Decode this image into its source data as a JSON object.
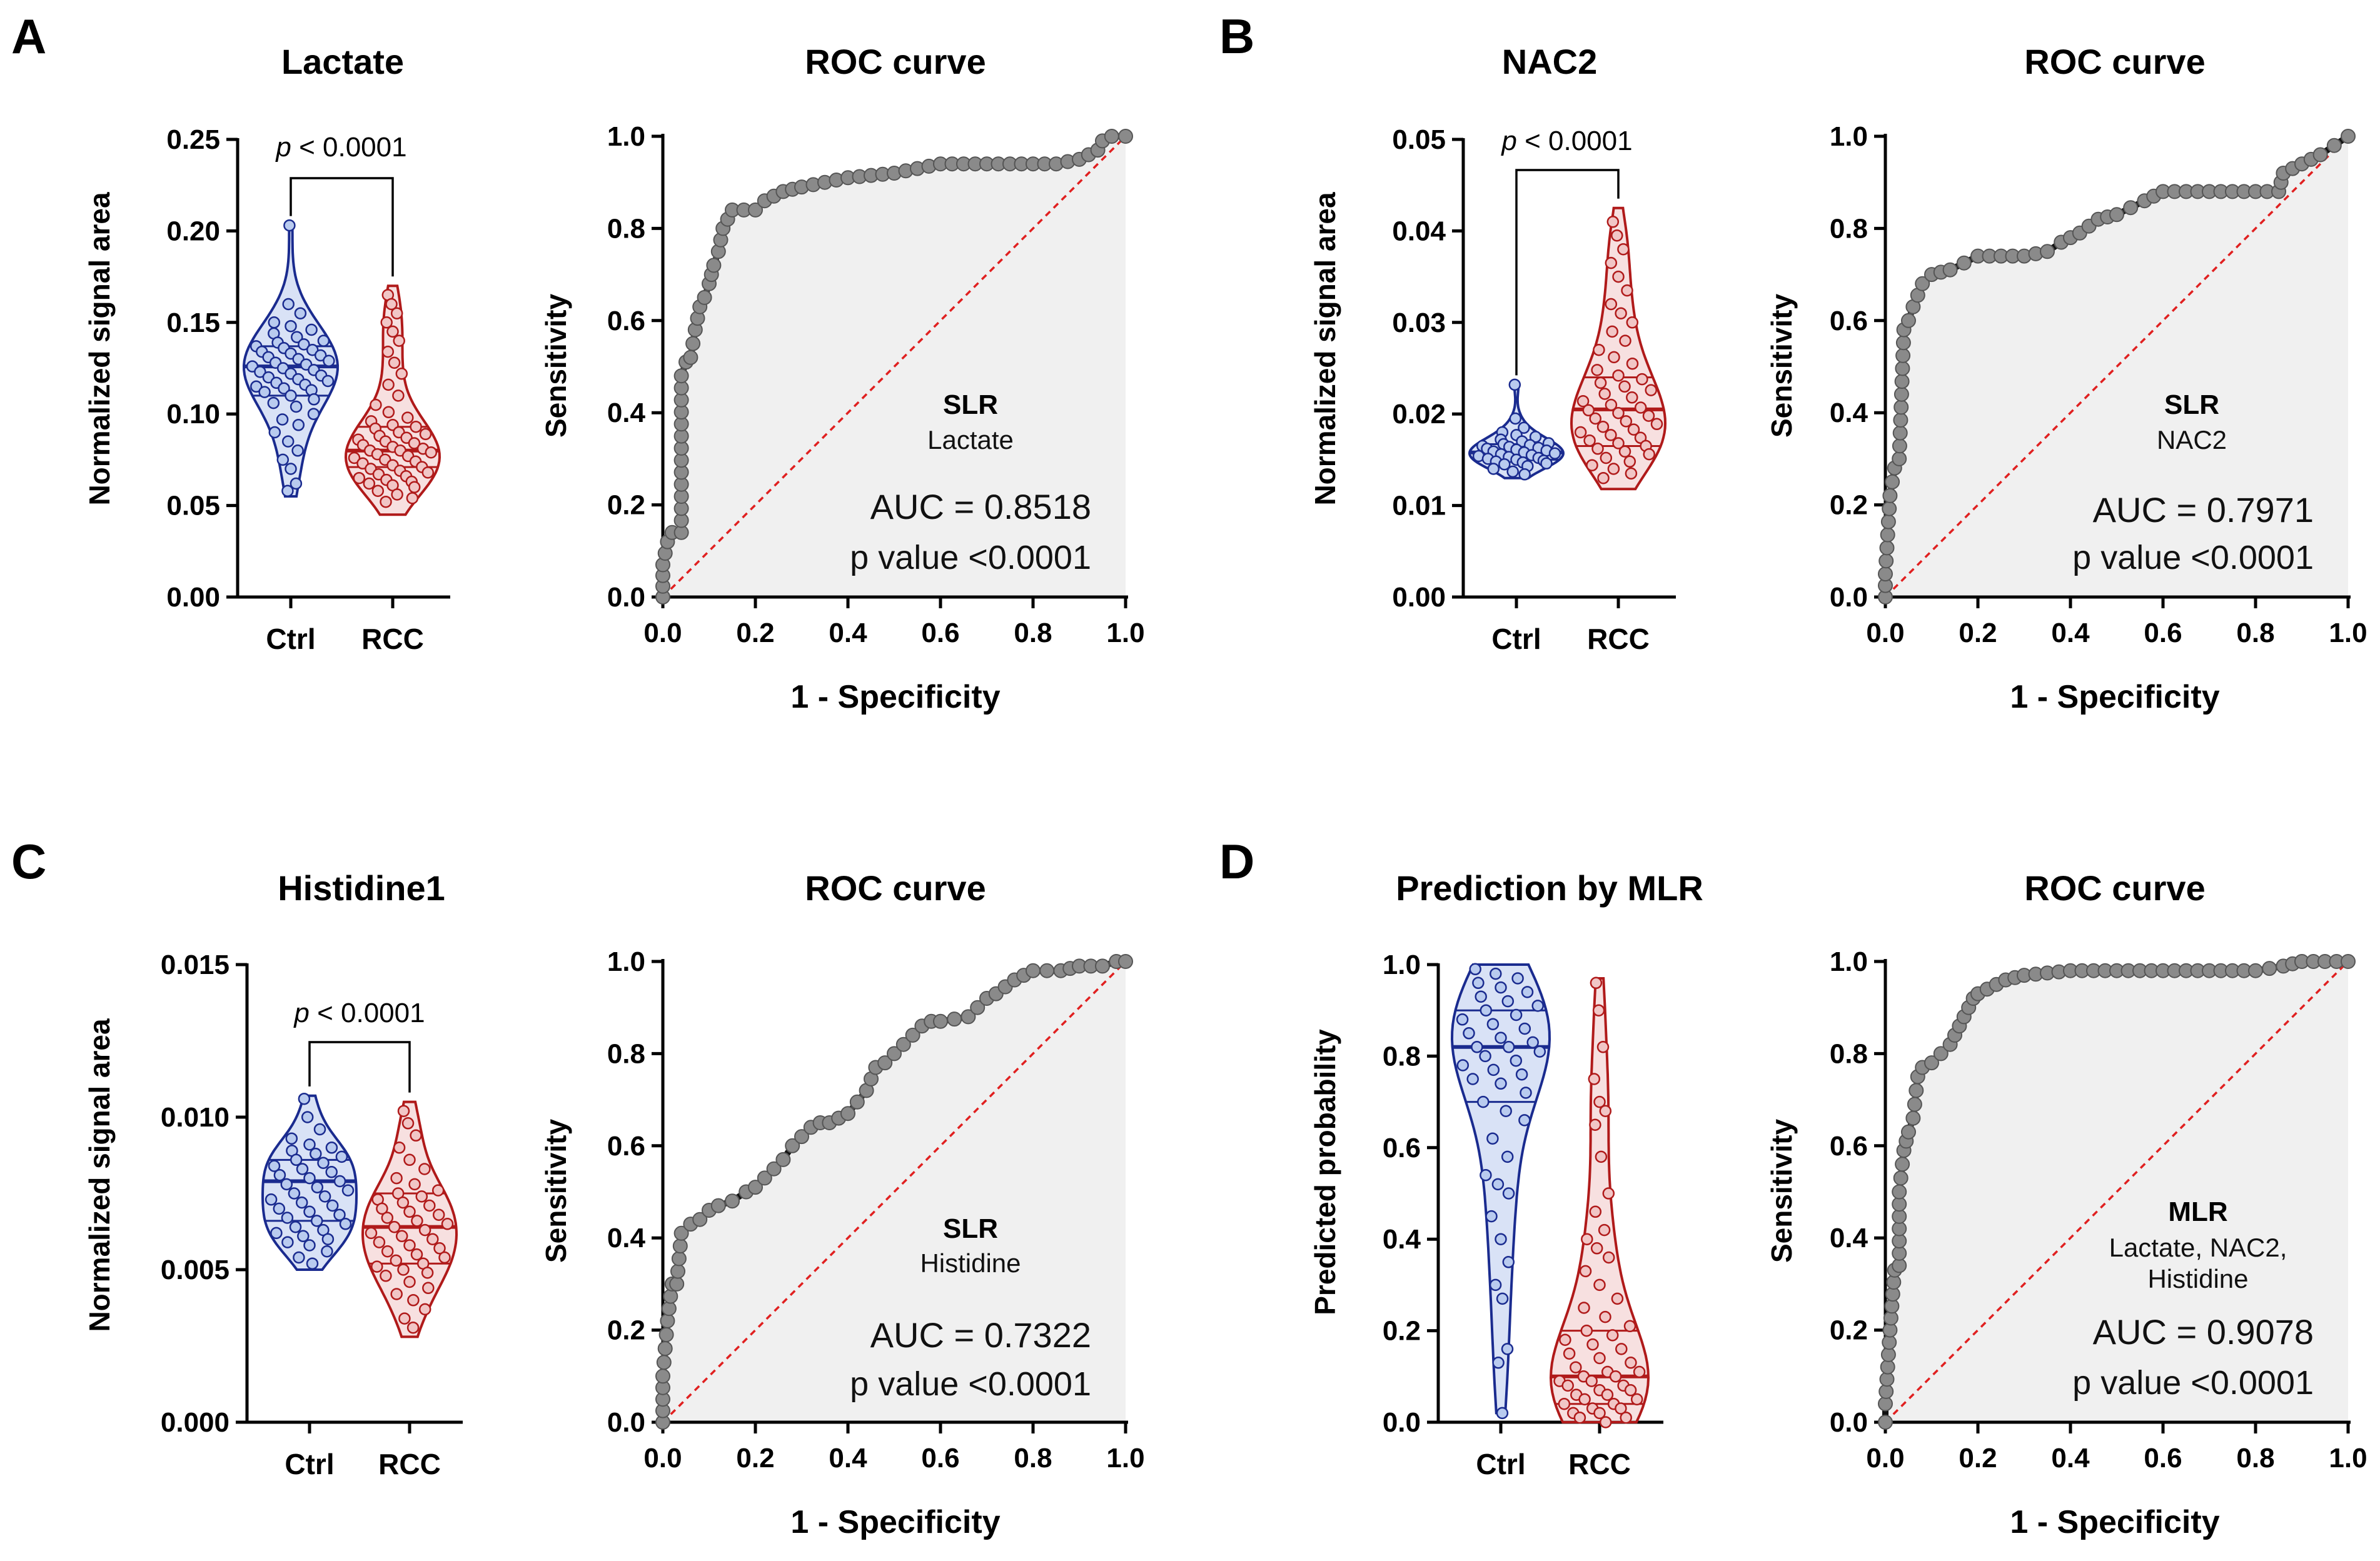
{
  "colors": {
    "ctrl": "#1a2b8f",
    "ctrl_fill": "#b9cbef",
    "rcc": "#b01a1a",
    "rcc_fill": "#f1c6c6",
    "roc_line": "#111111",
    "roc_marker": "#8a8a8a",
    "roc_area": "#f0f0f0",
    "diagonal": "#e02020"
  },
  "panels": [
    {
      "letter": "A",
      "violin_title": "Lactate",
      "roc_title": "ROC curve",
      "ylabel": "Normalized signal area",
      "roc_ylabel": "Sensitivity",
      "roc_xlabel": "1 - Specificity",
      "p_prefix": "p",
      "p_text": " < 0.0001",
      "model": "SLR",
      "model_vars": [
        "Lactate"
      ],
      "auc": "AUC = 0.8518",
      "pvalue": "p value <0.0001"
    },
    {
      "letter": "B",
      "violin_title": "NAC2",
      "roc_title": "ROC curve",
      "ylabel": "Normalized signal area",
      "roc_ylabel": "Sensitivity",
      "roc_xlabel": "1 - Specificity",
      "p_prefix": "p",
      "p_text": " < 0.0001",
      "model": "SLR",
      "model_vars": [
        "NAC2"
      ],
      "auc": "AUC = 0.7971",
      "pvalue": "p value <0.0001"
    },
    {
      "letter": "C",
      "violin_title": "Histidine1",
      "roc_title": "ROC curve",
      "ylabel": "Normalized signal area",
      "roc_ylabel": "Sensitivity",
      "roc_xlabel": "1 - Specificity",
      "p_prefix": "p",
      "p_text": " < 0.0001",
      "model": "SLR",
      "model_vars": [
        "Histidine"
      ],
      "auc": "AUC = 0.7322",
      "pvalue": "p value <0.0001"
    },
    {
      "letter": "D",
      "violin_title": "Prediction by MLR",
      "roc_title": "ROC curve",
      "ylabel": "Predicted probability",
      "roc_ylabel": "Sensitivity",
      "roc_xlabel": "1 - Specificity",
      "p_prefix": "",
      "p_text": "",
      "model": "MLR",
      "model_vars": [
        "Lactate, NAC2,",
        "Histidine"
      ],
      "auc": "AUC = 0.9078",
      "pvalue": "p value <0.0001"
    }
  ],
  "chart_data": [
    {
      "type": "violin",
      "title": "Lactate",
      "ylabel": "Normalized signal area",
      "categories": [
        "Ctrl",
        "RCC"
      ],
      "ylim": [
        0,
        0.25
      ],
      "yticks": [
        "0.00",
        "0.05",
        "0.10",
        "0.15",
        "0.20",
        "0.25"
      ],
      "annotation": "p < 0.0001",
      "series": [
        {
          "name": "Ctrl",
          "min": 0.055,
          "max": 0.203,
          "q1": 0.11,
          "median": 0.126,
          "q3": 0.137,
          "points": [
            0.203,
            0.16,
            0.155,
            0.15,
            0.148,
            0.146,
            0.144,
            0.142,
            0.14,
            0.139,
            0.138,
            0.137,
            0.136,
            0.135,
            0.134,
            0.133,
            0.132,
            0.131,
            0.13,
            0.129,
            0.128,
            0.127,
            0.126,
            0.125,
            0.124,
            0.123,
            0.122,
            0.121,
            0.12,
            0.119,
            0.118,
            0.117,
            0.116,
            0.115,
            0.114,
            0.113,
            0.112,
            0.11,
            0.108,
            0.106,
            0.104,
            0.1,
            0.097,
            0.094,
            0.09,
            0.085,
            0.08,
            0.075,
            0.07,
            0.062,
            0.058
          ]
        },
        {
          "name": "RCC",
          "min": 0.045,
          "max": 0.17,
          "q1": 0.071,
          "median": 0.08,
          "q3": 0.093,
          "points": [
            0.165,
            0.16,
            0.155,
            0.15,
            0.145,
            0.14,
            0.134,
            0.128,
            0.122,
            0.116,
            0.11,
            0.105,
            0.101,
            0.098,
            0.096,
            0.094,
            0.093,
            0.092,
            0.09,
            0.089,
            0.088,
            0.087,
            0.086,
            0.085,
            0.084,
            0.083,
            0.082,
            0.081,
            0.08,
            0.08,
            0.079,
            0.078,
            0.077,
            0.076,
            0.075,
            0.074,
            0.073,
            0.072,
            0.071,
            0.07,
            0.069,
            0.068,
            0.067,
            0.066,
            0.065,
            0.064,
            0.063,
            0.062,
            0.061,
            0.06,
            0.058,
            0.056,
            0.054,
            0.052
          ]
        }
      ]
    },
    {
      "type": "line",
      "title": "ROC curve",
      "xlabel": "1 - Specificity",
      "ylabel": "Sensitivity",
      "xlim": [
        0,
        1
      ],
      "ylim": [
        0,
        1
      ],
      "ticks": [
        "0.0",
        "0.2",
        "0.4",
        "0.6",
        "0.8",
        "1.0"
      ],
      "x": [
        0,
        0,
        0.01,
        0.02,
        0.04,
        0.04,
        0.05,
        0.06,
        0.07,
        0.08,
        0.09,
        0.1,
        0.11,
        0.12,
        0.13,
        0.15,
        0.2,
        0.22,
        0.26,
        0.3,
        0.35,
        0.4,
        0.5,
        0.6,
        0.7,
        0.85,
        0.9,
        0.94,
        0.95,
        0.97,
        1.0
      ],
      "y": [
        0,
        0.07,
        0.12,
        0.14,
        0.14,
        0.48,
        0.51,
        0.52,
        0.58,
        0.63,
        0.65,
        0.68,
        0.72,
        0.75,
        0.8,
        0.84,
        0.84,
        0.86,
        0.88,
        0.89,
        0.9,
        0.91,
        0.92,
        0.94,
        0.94,
        0.94,
        0.95,
        0.97,
        0.99,
        1.0,
        1.0
      ],
      "text": [
        "SLR",
        "Lactate",
        "AUC = 0.8518",
        "p value <0.0001"
      ]
    },
    {
      "type": "violin",
      "title": "NAC2",
      "ylabel": "Normalized signal area",
      "categories": [
        "Ctrl",
        "RCC"
      ],
      "ylim": [
        0,
        0.05
      ],
      "yticks": [
        "0.00",
        "0.01",
        "0.02",
        "0.03",
        "0.04",
        "0.05"
      ],
      "annotation": "p < 0.0001",
      "series": [
        {
          "name": "Ctrl",
          "min": 0.013,
          "max": 0.0232,
          "q1": 0.015,
          "median": 0.0158,
          "q3": 0.0167,
          "points": [
            0.0232,
            0.0195,
            0.0185,
            0.018,
            0.0177,
            0.0175,
            0.0172,
            0.017,
            0.0168,
            0.0167,
            0.0166,
            0.0165,
            0.0164,
            0.0163,
            0.0162,
            0.0161,
            0.016,
            0.0159,
            0.0158,
            0.0157,
            0.0156,
            0.0155,
            0.0154,
            0.0153,
            0.0152,
            0.0151,
            0.015,
            0.0149,
            0.0148,
            0.0147,
            0.0146,
            0.0145,
            0.0143,
            0.014,
            0.0137,
            0.0134
          ]
        },
        {
          "name": "RCC",
          "min": 0.0118,
          "max": 0.0425,
          "q1": 0.0165,
          "median": 0.0205,
          "q3": 0.024,
          "points": [
            0.041,
            0.0395,
            0.038,
            0.0365,
            0.035,
            0.0335,
            0.032,
            0.031,
            0.03,
            0.029,
            0.028,
            0.027,
            0.0262,
            0.0255,
            0.0248,
            0.0242,
            0.0238,
            0.0234,
            0.023,
            0.0226,
            0.0222,
            0.0218,
            0.0214,
            0.021,
            0.0207,
            0.0204,
            0.0201,
            0.0198,
            0.0195,
            0.0192,
            0.0189,
            0.0186,
            0.0183,
            0.018,
            0.0177,
            0.0174,
            0.0171,
            0.0168,
            0.0165,
            0.0162,
            0.0159,
            0.0156,
            0.0152,
            0.0148,
            0.0144,
            0.014,
            0.0135,
            0.013
          ]
        }
      ]
    },
    {
      "type": "line",
      "title": "ROC curve",
      "xlabel": "1 - Specificity",
      "ylabel": "Sensitivity",
      "xlim": [
        0,
        1
      ],
      "ylim": [
        0,
        1
      ],
      "ticks": [
        "0.0",
        "0.2",
        "0.4",
        "0.6",
        "0.8",
        "1.0"
      ],
      "x": [
        0,
        0,
        0.01,
        0.02,
        0.03,
        0.04,
        0.05,
        0.06,
        0.08,
        0.1,
        0.14,
        0.2,
        0.3,
        0.35,
        0.38,
        0.42,
        0.46,
        0.5,
        0.56,
        0.6,
        0.7,
        0.8,
        0.85,
        0.86,
        0.9,
        0.94,
        0.97,
        1.0
      ],
      "y": [
        0,
        0.05,
        0.22,
        0.28,
        0.3,
        0.58,
        0.6,
        0.63,
        0.68,
        0.7,
        0.71,
        0.74,
        0.74,
        0.75,
        0.77,
        0.79,
        0.82,
        0.83,
        0.86,
        0.88,
        0.88,
        0.88,
        0.88,
        0.92,
        0.94,
        0.96,
        0.98,
        1.0
      ],
      "text": [
        "SLR",
        "NAC2",
        "AUC = 0.7971",
        "p value <0.0001"
      ]
    },
    {
      "type": "violin",
      "title": "Histidine1",
      "ylabel": "Normalized signal area",
      "categories": [
        "Ctrl",
        "RCC"
      ],
      "ylim": [
        0,
        0.015
      ],
      "yticks": [
        "0.000",
        "0.005",
        "0.010",
        "0.015"
      ],
      "annotation": "p < 0.0001",
      "series": [
        {
          "name": "Ctrl",
          "min": 0.005,
          "max": 0.0107,
          "q1": 0.0066,
          "median": 0.0079,
          "q3": 0.0086,
          "points": [
            0.0106,
            0.01,
            0.0096,
            0.0093,
            0.0091,
            0.009,
            0.0089,
            0.0088,
            0.0087,
            0.0086,
            0.0085,
            0.0084,
            0.0083,
            0.0082,
            0.0081,
            0.008,
            0.0079,
            0.0078,
            0.0077,
            0.0076,
            0.0075,
            0.0074,
            0.0073,
            0.0072,
            0.0071,
            0.007,
            0.0069,
            0.0068,
            0.0067,
            0.0066,
            0.0065,
            0.0064,
            0.0063,
            0.0062,
            0.0061,
            0.006,
            0.0059,
            0.0058,
            0.0056,
            0.0054,
            0.0052
          ]
        },
        {
          "name": "RCC",
          "min": 0.0028,
          "max": 0.0105,
          "q1": 0.0052,
          "median": 0.0064,
          "q3": 0.0075,
          "points": [
            0.0102,
            0.0098,
            0.0094,
            0.009,
            0.0086,
            0.0083,
            0.008,
            0.0078,
            0.0076,
            0.0075,
            0.0074,
            0.0073,
            0.0072,
            0.0071,
            0.007,
            0.0069,
            0.0068,
            0.0067,
            0.0066,
            0.0065,
            0.0064,
            0.0063,
            0.0062,
            0.0061,
            0.006,
            0.0059,
            0.0058,
            0.0057,
            0.0056,
            0.0055,
            0.0054,
            0.0053,
            0.0052,
            0.0051,
            0.005,
            0.0049,
            0.0048,
            0.0046,
            0.0044,
            0.0042,
            0.004,
            0.0037,
            0.0034,
            0.0031
          ]
        }
      ]
    },
    {
      "type": "line",
      "title": "ROC curve",
      "xlabel": "1 - Specificity",
      "ylabel": "Sensitivity",
      "xlim": [
        0,
        1
      ],
      "ylim": [
        0,
        1
      ],
      "ticks": [
        "0.0",
        "0.2",
        "0.4",
        "0.6",
        "0.8",
        "1.0"
      ],
      "x": [
        0,
        0,
        0.01,
        0.02,
        0.03,
        0.04,
        0.06,
        0.08,
        0.1,
        0.12,
        0.15,
        0.18,
        0.2,
        0.22,
        0.24,
        0.26,
        0.28,
        0.3,
        0.32,
        0.34,
        0.36,
        0.4,
        0.44,
        0.46,
        0.48,
        0.5,
        0.54,
        0.56,
        0.58,
        0.6,
        0.66,
        0.7,
        0.72,
        0.76,
        0.8,
        0.86,
        0.9,
        0.95,
        0.98,
        1.0
      ],
      "y": [
        0,
        0.1,
        0.22,
        0.3,
        0.3,
        0.41,
        0.43,
        0.44,
        0.46,
        0.47,
        0.48,
        0.5,
        0.51,
        0.53,
        0.55,
        0.57,
        0.6,
        0.62,
        0.64,
        0.65,
        0.65,
        0.67,
        0.72,
        0.77,
        0.78,
        0.8,
        0.84,
        0.86,
        0.87,
        0.87,
        0.88,
        0.92,
        0.93,
        0.96,
        0.98,
        0.98,
        0.99,
        0.99,
        1.0,
        1.0
      ],
      "text": [
        "SLR",
        "Histidine",
        "AUC = 0.7322",
        "p value <0.0001"
      ]
    },
    {
      "type": "violin",
      "title": "Prediction by MLR",
      "ylabel": "Predicted probability",
      "categories": [
        "Ctrl",
        "RCC"
      ],
      "ylim": [
        0,
        1.0
      ],
      "yticks": [
        "0.0",
        "0.2",
        "0.4",
        "0.6",
        "0.8",
        "1.0"
      ],
      "annotation": "",
      "series": [
        {
          "name": "Ctrl",
          "min": 0.02,
          "max": 1.0,
          "q1": 0.7,
          "median": 0.82,
          "q3": 0.9,
          "points": [
            0.99,
            0.98,
            0.97,
            0.96,
            0.95,
            0.94,
            0.93,
            0.92,
            0.91,
            0.9,
            0.89,
            0.88,
            0.87,
            0.86,
            0.85,
            0.84,
            0.83,
            0.82,
            0.82,
            0.81,
            0.8,
            0.79,
            0.78,
            0.77,
            0.76,
            0.75,
            0.74,
            0.72,
            0.7,
            0.68,
            0.66,
            0.62,
            0.58,
            0.54,
            0.52,
            0.5,
            0.45,
            0.4,
            0.35,
            0.3,
            0.27,
            0.16,
            0.13,
            0.02
          ]
        },
        {
          "name": "RCC",
          "min": 0.0,
          "max": 0.97,
          "q1": 0.04,
          "median": 0.1,
          "q3": 0.2,
          "points": [
            0.96,
            0.9,
            0.82,
            0.75,
            0.7,
            0.68,
            0.65,
            0.58,
            0.5,
            0.46,
            0.42,
            0.4,
            0.38,
            0.36,
            0.33,
            0.3,
            0.27,
            0.25,
            0.23,
            0.21,
            0.2,
            0.19,
            0.18,
            0.17,
            0.16,
            0.15,
            0.14,
            0.13,
            0.12,
            0.11,
            0.11,
            0.1,
            0.1,
            0.09,
            0.09,
            0.08,
            0.08,
            0.07,
            0.07,
            0.06,
            0.06,
            0.05,
            0.05,
            0.04,
            0.04,
            0.03,
            0.03,
            0.02,
            0.02,
            0.01,
            0.01,
            0.0
          ]
        }
      ]
    },
    {
      "type": "line",
      "title": "ROC curve",
      "xlabel": "1 - Specificity",
      "ylabel": "Sensitivity",
      "xlim": [
        0,
        1
      ],
      "ylim": [
        0,
        1
      ],
      "ticks": [
        "0.0",
        "0.2",
        "0.4",
        "0.6",
        "0.8",
        "1.0"
      ],
      "x": [
        0,
        0,
        0.01,
        0.02,
        0.03,
        0.03,
        0.04,
        0.05,
        0.06,
        0.07,
        0.08,
        0.1,
        0.12,
        0.14,
        0.15,
        0.17,
        0.19,
        0.2,
        0.22,
        0.24,
        0.26,
        0.3,
        0.4,
        0.5,
        0.6,
        0.7,
        0.8,
        0.86,
        0.9,
        1.0
      ],
      "y": [
        0,
        0.04,
        0.2,
        0.33,
        0.34,
        0.5,
        0.59,
        0.63,
        0.66,
        0.75,
        0.77,
        0.78,
        0.8,
        0.82,
        0.84,
        0.88,
        0.92,
        0.93,
        0.94,
        0.95,
        0.96,
        0.97,
        0.98,
        0.98,
        0.98,
        0.98,
        0.98,
        0.99,
        1.0,
        1.0
      ],
      "text": [
        "MLR",
        "Lactate, NAC2,",
        "Histidine",
        "AUC = 0.9078",
        "p value <0.0001"
      ]
    }
  ]
}
